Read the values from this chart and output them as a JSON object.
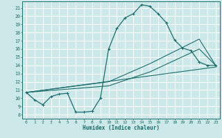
{
  "xlabel": "Humidex (Indice chaleur)",
  "bg_color": "#cce8e8",
  "grid_color": "#b8d8d8",
  "line_color": "#1a6b6b",
  "xlim": [
    -0.5,
    23.5
  ],
  "ylim": [
    7.5,
    21.8
  ],
  "xticks": [
    0,
    1,
    2,
    3,
    4,
    5,
    6,
    7,
    8,
    9,
    10,
    11,
    12,
    13,
    14,
    15,
    16,
    17,
    18,
    19,
    20,
    21,
    22,
    23
  ],
  "yticks": [
    8,
    9,
    10,
    11,
    12,
    13,
    14,
    15,
    16,
    17,
    18,
    19,
    20,
    21
  ],
  "curve_main_x": [
    0,
    1,
    2,
    3,
    4,
    5,
    6,
    7,
    8,
    9,
    10,
    11,
    12,
    13,
    14,
    15,
    16,
    17,
    18,
    19,
    20,
    21,
    22,
    23
  ],
  "curve_main_y": [
    10.7,
    9.8,
    9.2,
    10.2,
    10.5,
    10.6,
    8.3,
    8.3,
    8.4,
    10.0,
    16.0,
    18.5,
    19.8,
    20.3,
    21.4,
    21.2,
    20.3,
    19.2,
    17.1,
    16.1,
    15.8,
    14.4,
    14.0,
    14.0
  ],
  "line1_x": [
    0,
    23
  ],
  "line1_y": [
    10.7,
    13.8
  ],
  "line2_x": [
    0,
    10,
    15,
    21,
    23
  ],
  "line2_y": [
    10.7,
    11.5,
    13.2,
    16.0,
    14.0
  ],
  "line3_x": [
    0,
    10,
    15,
    21,
    23
  ],
  "line3_y": [
    10.7,
    12.0,
    14.2,
    17.2,
    14.0
  ]
}
